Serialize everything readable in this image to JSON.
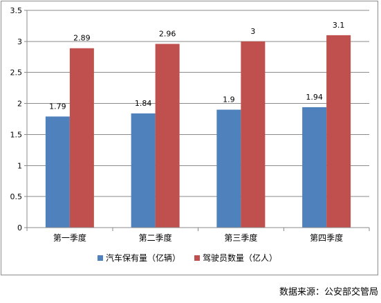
{
  "chart_data": {
    "type": "bar",
    "categories": [
      "第一季度",
      "第二季度",
      "第三季度",
      "第四季度"
    ],
    "series": [
      {
        "name": "汽车保有量（亿辆）",
        "values": [
          1.79,
          1.84,
          1.9,
          1.94
        ],
        "color": "#4f81bd",
        "labels": [
          "1.79",
          "1.84",
          "1.9",
          "1.94"
        ]
      },
      {
        "name": "驾驶员数量（亿人）",
        "values": [
          2.89,
          2.96,
          3,
          3.1
        ],
        "color": "#c0504d",
        "labels": [
          "2.89",
          "2.96",
          "3",
          "3.1"
        ]
      }
    ],
    "ylim": [
      0,
      3.5
    ],
    "yticks": [
      0,
      0.5,
      1,
      1.5,
      2,
      2.5,
      3,
      3.5
    ],
    "ytick_labels": [
      "0",
      "0.5",
      "1",
      "1.5",
      "2",
      "2.5",
      "3",
      "3.5"
    ],
    "grid": true,
    "legend": "bottom",
    "title": "",
    "xlabel": "",
    "ylabel": ""
  },
  "source": "数据来源：公安部交管局"
}
